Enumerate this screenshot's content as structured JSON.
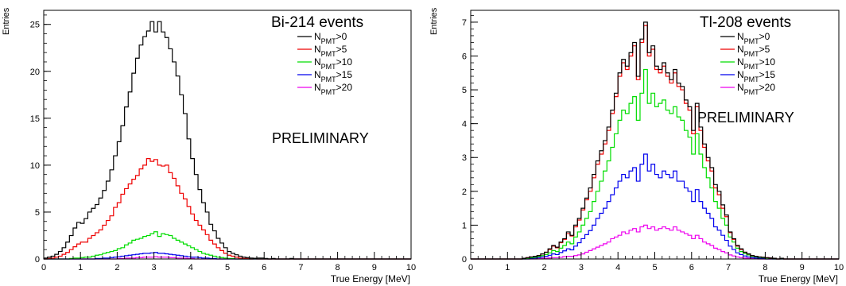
{
  "chart_data": [
    {
      "type": "histogram",
      "title": "Bi-214 events",
      "annotation": "PRELIMINARY",
      "xlabel": "True Energy [MeV]",
      "ylabel": "Entries",
      "xlim": [
        0,
        10
      ],
      "ylim": [
        0,
        26.5
      ],
      "xticks": [
        0,
        1,
        2,
        3,
        4,
        5,
        6,
        7,
        8,
        9,
        10
      ],
      "yticks": [
        0,
        5,
        10,
        15,
        20,
        25
      ],
      "bin_width": 0.1,
      "grid": false,
      "legend_position": "top-right",
      "legend_labels": [
        {
          "main": "N",
          "sub": "PMT",
          "cut": ">0"
        },
        {
          "main": "N",
          "sub": "PMT",
          "cut": ">5"
        },
        {
          "main": "N",
          "sub": "PMT",
          "cut": ">10"
        },
        {
          "main": "N",
          "sub": "PMT",
          "cut": ">15"
        },
        {
          "main": "N",
          "sub": "PMT",
          "cut": ">20"
        }
      ],
      "series": [
        {
          "color": "#000000",
          "values": [
            0.1,
            0.2,
            0.3,
            0.5,
            0.8,
            1.2,
            1.8,
            2.5,
            3.3,
            3.9,
            3.8,
            4.3,
            5.0,
            5.4,
            5.8,
            6.5,
            7.3,
            8.3,
            9.5,
            11,
            12.5,
            14.2,
            16.2,
            17.8,
            19.8,
            21.4,
            22.8,
            23.7,
            24.3,
            25.3,
            24.2,
            25.3,
            24.2,
            23.6,
            22.4,
            21.0,
            19.5,
            17.5,
            15.5,
            12.8,
            10.7,
            9.0,
            7.4,
            6.0,
            5.0,
            3.7,
            3.0,
            2.2,
            1.7,
            1.2,
            0.8,
            0.6,
            0.45,
            0.3,
            0.2,
            0.15,
            0.1,
            0.08,
            0.1,
            0.1,
            0.05,
            0,
            0.05,
            0,
            0,
            0,
            0,
            0.05,
            0,
            0,
            0,
            0,
            0,
            0,
            0,
            0,
            0,
            0,
            0,
            0,
            0,
            0,
            0,
            0,
            0,
            0,
            0,
            0,
            0,
            0,
            0,
            0,
            0,
            0,
            0,
            0,
            0,
            0,
            0,
            0
          ]
        },
        {
          "color": "#ee0000",
          "values": [
            0,
            0.05,
            0.1,
            0.2,
            0.3,
            0.5,
            0.7,
            1.0,
            1.3,
            1.6,
            1.8,
            1.8,
            2.2,
            2.5,
            2.8,
            3.1,
            3.6,
            4.1,
            4.6,
            5.5,
            6.0,
            6.9,
            7.5,
            8.0,
            8.5,
            8.9,
            9.6,
            10.0,
            10.7,
            10.4,
            10.6,
            10.0,
            9.9,
            10.0,
            9.2,
            8.6,
            7.8,
            7.0,
            6.4,
            5.6,
            4.8,
            4.1,
            3.6,
            3.1,
            2.6,
            2.0,
            1.6,
            1.2,
            0.9,
            0.6,
            0.4,
            0.3,
            0.2,
            0.1,
            0.05,
            0.05,
            0,
            0.05,
            0,
            0,
            0,
            0,
            0,
            0,
            0,
            0,
            0,
            0,
            0,
            0,
            0,
            0,
            0,
            0,
            0,
            0,
            0,
            0,
            0,
            0,
            0,
            0,
            0,
            0,
            0,
            0,
            0,
            0,
            0,
            0,
            0,
            0,
            0,
            0,
            0,
            0,
            0,
            0,
            0,
            0
          ]
        },
        {
          "color": "#00dd00",
          "values": [
            0,
            0,
            0,
            0,
            0,
            0,
            0,
            0.05,
            0.1,
            0.1,
            0.15,
            0.2,
            0.2,
            0.3,
            0.4,
            0.45,
            0.6,
            0.7,
            0.8,
            0.9,
            1.1,
            1.2,
            1.5,
            1.7,
            2.0,
            2.1,
            2.2,
            2.4,
            2.5,
            2.7,
            2.9,
            2.4,
            2.7,
            2.6,
            2.5,
            2.2,
            2.0,
            1.8,
            1.6,
            1.4,
            1.2,
            1.0,
            0.8,
            0.6,
            0.5,
            0.4,
            0.3,
            0.2,
            0.15,
            0.1,
            0.05,
            0.05,
            0,
            0,
            0,
            0,
            0,
            0,
            0,
            0,
            0,
            0,
            0,
            0,
            0,
            0,
            0,
            0,
            0,
            0,
            0,
            0,
            0,
            0,
            0,
            0,
            0,
            0,
            0,
            0,
            0,
            0,
            0,
            0,
            0,
            0,
            0,
            0,
            0,
            0,
            0,
            0,
            0,
            0,
            0,
            0,
            0,
            0,
            0,
            0
          ]
        },
        {
          "color": "#0000ee",
          "values": [
            0,
            0,
            0,
            0,
            0,
            0,
            0,
            0,
            0,
            0,
            0,
            0,
            0,
            0,
            0.05,
            0.05,
            0.1,
            0.1,
            0.15,
            0.2,
            0.25,
            0.3,
            0.35,
            0.4,
            0.45,
            0.5,
            0.55,
            0.6,
            0.6,
            0.65,
            0.7,
            0.6,
            0.6,
            0.55,
            0.5,
            0.45,
            0.4,
            0.35,
            0.3,
            0.25,
            0.2,
            0.2,
            0.15,
            0.1,
            0.1,
            0.05,
            0.05,
            0,
            0,
            0,
            0,
            0,
            0,
            0,
            0,
            0,
            0,
            0,
            0,
            0,
            0,
            0,
            0,
            0,
            0,
            0,
            0,
            0,
            0,
            0,
            0,
            0,
            0,
            0,
            0,
            0,
            0,
            0,
            0,
            0,
            0,
            0,
            0,
            0,
            0,
            0,
            0,
            0,
            0,
            0,
            0,
            0,
            0,
            0,
            0,
            0,
            0,
            0,
            0,
            0
          ]
        },
        {
          "color": "#ee00ee",
          "values": [
            0,
            0,
            0,
            0,
            0,
            0,
            0,
            0,
            0,
            0,
            0,
            0,
            0,
            0,
            0,
            0,
            0,
            0,
            0,
            0,
            0.05,
            0.05,
            0.1,
            0.1,
            0.1,
            0.15,
            0.15,
            0.2,
            0.2,
            0.2,
            0.25,
            0.2,
            0.2,
            0.2,
            0.15,
            0.15,
            0.1,
            0.1,
            0.1,
            0.05,
            0.05,
            0,
            0,
            0,
            0,
            0,
            0,
            0,
            0,
            0,
            0,
            0,
            0,
            0,
            0,
            0,
            0,
            0,
            0,
            0,
            0,
            0,
            0,
            0,
            0,
            0,
            0,
            0,
            0,
            0,
            0,
            0,
            0,
            0,
            0,
            0,
            0,
            0,
            0,
            0,
            0,
            0,
            0,
            0,
            0,
            0,
            0,
            0,
            0,
            0,
            0,
            0,
            0,
            0,
            0,
            0,
            0,
            0,
            0,
            0
          ]
        }
      ]
    },
    {
      "type": "histogram",
      "title": "Tl-208 events",
      "annotation": "PRELIMINARY",
      "xlabel": "True Energy [MeV]",
      "ylabel": "Entries",
      "xlim": [
        0,
        10
      ],
      "ylim": [
        0,
        7.35
      ],
      "xticks": [
        0,
        1,
        2,
        3,
        4,
        5,
        6,
        7,
        8,
        9,
        10
      ],
      "yticks": [
        0,
        1,
        2,
        3,
        4,
        5,
        6,
        7
      ],
      "bin_width": 0.1,
      "grid": false,
      "legend_position": "top-right",
      "legend_labels": [
        {
          "main": "N",
          "sub": "PMT",
          "cut": ">0"
        },
        {
          "main": "N",
          "sub": "PMT",
          "cut": ">5"
        },
        {
          "main": "N",
          "sub": "PMT",
          "cut": ">10"
        },
        {
          "main": "N",
          "sub": "PMT",
          "cut": ">15"
        },
        {
          "main": "N",
          "sub": "PMT",
          "cut": ">20"
        }
      ],
      "series": [
        {
          "color": "#000000",
          "values": [
            0,
            0,
            0,
            0,
            0,
            0,
            0,
            0,
            0,
            0,
            0,
            0,
            0,
            0,
            0.02,
            0.04,
            0.06,
            0.08,
            0.1,
            0.15,
            0.2,
            0.3,
            0.4,
            0.35,
            0.5,
            0.6,
            0.8,
            0.7,
            1.0,
            1.2,
            1.5,
            1.8,
            2.1,
            2.5,
            2.9,
            3.2,
            3.5,
            3.9,
            4.4,
            4.9,
            5.5,
            5.9,
            5.7,
            6.1,
            6.4,
            5.4,
            6.5,
            7.0,
            6.1,
            6.3,
            5.7,
            5.6,
            5.8,
            5.5,
            5.3,
            5.6,
            5.2,
            5.1,
            4.7,
            4.5,
            3.8,
            4.6,
            3.9,
            3.4,
            3.0,
            2.7,
            2.2,
            2.0,
            1.6,
            1.3,
            0.8,
            0.6,
            0.4,
            0.3,
            0.2,
            0.15,
            0.1,
            0.08,
            0.06,
            0.05,
            0.04,
            0.03,
            0.02,
            0,
            0.02,
            0,
            0,
            0,
            0,
            0,
            0,
            0,
            0,
            0,
            0,
            0,
            0,
            0,
            0,
            0
          ]
        },
        {
          "color": "#ee0000",
          "values": [
            0,
            0,
            0,
            0,
            0,
            0,
            0,
            0,
            0,
            0,
            0,
            0,
            0,
            0,
            0.02,
            0.04,
            0.06,
            0.08,
            0.1,
            0.15,
            0.2,
            0.28,
            0.38,
            0.33,
            0.48,
            0.58,
            0.75,
            0.68,
            0.95,
            1.15,
            1.45,
            1.75,
            2.0,
            2.4,
            2.8,
            3.1,
            3.4,
            3.8,
            4.3,
            4.8,
            5.4,
            5.8,
            5.6,
            6.0,
            6.3,
            5.3,
            6.4,
            6.9,
            6.0,
            6.2,
            5.6,
            5.5,
            5.7,
            5.4,
            5.2,
            5.5,
            5.1,
            5.0,
            4.6,
            4.4,
            3.7,
            4.5,
            3.8,
            3.3,
            2.9,
            2.6,
            2.1,
            1.9,
            1.5,
            1.25,
            0.78,
            0.58,
            0.38,
            0.28,
            0.2,
            0.15,
            0.1,
            0.08,
            0.06,
            0.05,
            0.04,
            0.03,
            0.02,
            0,
            0.02,
            0,
            0,
            0,
            0,
            0,
            0,
            0,
            0,
            0,
            0,
            0,
            0,
            0,
            0,
            0
          ]
        },
        {
          "color": "#00dd00",
          "values": [
            0,
            0,
            0,
            0,
            0,
            0,
            0,
            0,
            0,
            0,
            0,
            0,
            0,
            0,
            0,
            0.02,
            0.04,
            0.05,
            0.07,
            0.1,
            0.13,
            0.18,
            0.25,
            0.22,
            0.32,
            0.4,
            0.5,
            0.45,
            0.65,
            0.8,
            1.0,
            1.2,
            1.4,
            1.7,
            2.0,
            2.3,
            2.6,
            2.9,
            3.3,
            3.7,
            4.1,
            4.4,
            4.3,
            4.6,
            4.8,
            4.1,
            4.9,
            5.6,
            4.6,
            4.9,
            4.5,
            4.6,
            4.7,
            4.4,
            4.3,
            4.5,
            4.2,
            4.1,
            3.8,
            3.6,
            3.1,
            3.7,
            3.1,
            2.7,
            2.4,
            2.1,
            1.7,
            1.5,
            1.2,
            1.0,
            0.65,
            0.5,
            0.32,
            0.22,
            0.16,
            0.12,
            0.08,
            0.06,
            0.05,
            0.04,
            0.03,
            0.02,
            0,
            0,
            0,
            0,
            0,
            0,
            0,
            0,
            0,
            0,
            0,
            0,
            0,
            0,
            0,
            0,
            0,
            0
          ]
        },
        {
          "color": "#0000ee",
          "values": [
            0,
            0,
            0,
            0,
            0,
            0,
            0,
            0,
            0,
            0,
            0,
            0,
            0,
            0,
            0,
            0,
            0.02,
            0.03,
            0.04,
            0.06,
            0.08,
            0.11,
            0.15,
            0.13,
            0.19,
            0.24,
            0.3,
            0.27,
            0.38,
            0.48,
            0.6,
            0.72,
            0.84,
            1.0,
            1.2,
            1.35,
            1.5,
            1.7,
            1.9,
            2.1,
            2.3,
            2.5,
            2.4,
            2.6,
            2.7,
            2.3,
            2.8,
            3.1,
            2.6,
            2.8,
            2.5,
            2.4,
            2.6,
            2.5,
            2.4,
            2.6,
            2.3,
            2.3,
            2.1,
            2.0,
            1.7,
            2.05,
            1.7,
            1.5,
            1.35,
            1.2,
            0.95,
            0.85,
            0.7,
            0.55,
            0.38,
            0.28,
            0.18,
            0.13,
            0.09,
            0.06,
            0.04,
            0.03,
            0.02,
            0.02,
            0,
            0,
            0,
            0,
            0,
            0,
            0,
            0,
            0,
            0,
            0,
            0,
            0,
            0,
            0,
            0,
            0,
            0,
            0,
            0
          ]
        },
        {
          "color": "#ee00ee",
          "values": [
            0,
            0,
            0,
            0,
            0,
            0,
            0,
            0,
            0,
            0,
            0,
            0,
            0,
            0,
            0,
            0,
            0,
            0,
            0.01,
            0.02,
            0.02,
            0.03,
            0.04,
            0.04,
            0.05,
            0.07,
            0.08,
            0.08,
            0.1,
            0.12,
            0.15,
            0.2,
            0.25,
            0.3,
            0.35,
            0.4,
            0.45,
            0.5,
            0.6,
            0.65,
            0.7,
            0.8,
            0.75,
            0.85,
            0.9,
            0.8,
            0.95,
            1.0,
            0.9,
            0.95,
            0.85,
            0.9,
            0.95,
            0.9,
            0.85,
            0.95,
            0.85,
            0.8,
            0.75,
            0.7,
            0.6,
            0.7,
            0.6,
            0.5,
            0.45,
            0.4,
            0.32,
            0.28,
            0.22,
            0.18,
            0.12,
            0.09,
            0.06,
            0.04,
            0.03,
            0.02,
            0.02,
            0.01,
            0,
            0,
            0,
            0,
            0,
            0,
            0,
            0,
            0,
            0,
            0,
            0,
            0,
            0,
            0,
            0,
            0,
            0,
            0,
            0,
            0,
            0
          ]
        }
      ]
    }
  ]
}
